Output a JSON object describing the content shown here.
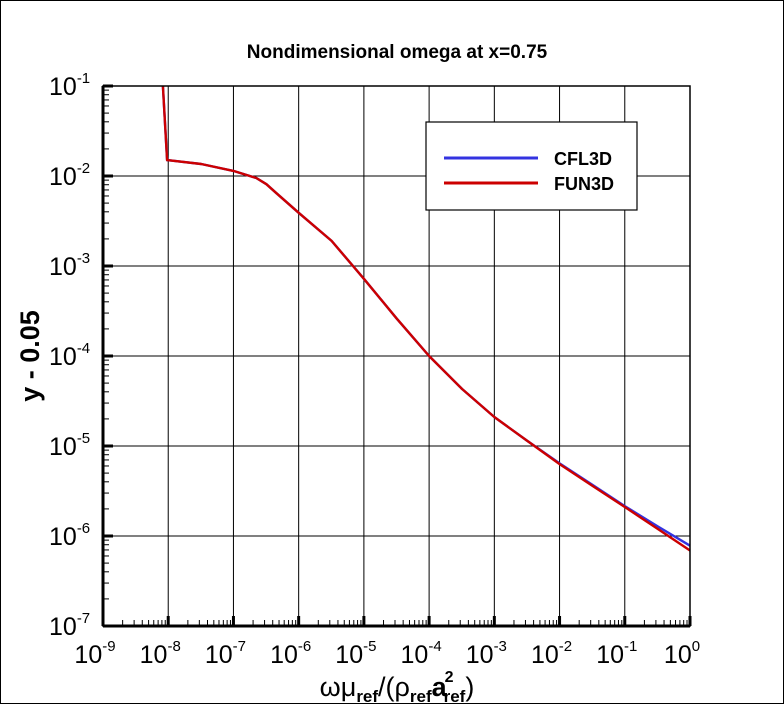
{
  "chart_data": {
    "type": "line",
    "title": "Nondimensional omega at x=0.75",
    "xlabel": "ωμref/(ρref a²ref)",
    "xlabel_parts": {
      "omega_mu": "ωμ",
      "sub1": "ref",
      "slash_paren": "/(ρ",
      "sub2": "ref",
      "a": "a",
      "sup": "2",
      "sub3": "ref",
      "close": ")"
    },
    "ylabel": "y - 0.05",
    "xscale": "log",
    "yscale": "log",
    "xlim": [
      1e-09,
      1
    ],
    "ylim": [
      1e-07,
      0.1
    ],
    "grid": true,
    "legend_position": "upper right (inset)",
    "x_ticks": [
      {
        "base": "10",
        "exp": "-9"
      },
      {
        "base": "10",
        "exp": "-8"
      },
      {
        "base": "10",
        "exp": "-7"
      },
      {
        "base": "10",
        "exp": "-6"
      },
      {
        "base": "10",
        "exp": "-5"
      },
      {
        "base": "10",
        "exp": "-4"
      },
      {
        "base": "10",
        "exp": "-3"
      },
      {
        "base": "10",
        "exp": "-2"
      },
      {
        "base": "10",
        "exp": "-1"
      },
      {
        "base": "10",
        "exp": "0"
      }
    ],
    "y_ticks": [
      {
        "base": "10",
        "exp": "-1"
      },
      {
        "base": "10",
        "exp": "-2"
      },
      {
        "base": "10",
        "exp": "-3"
      },
      {
        "base": "10",
        "exp": "-4"
      },
      {
        "base": "10",
        "exp": "-5"
      },
      {
        "base": "10",
        "exp": "-6"
      },
      {
        "base": "10",
        "exp": "-7"
      }
    ],
    "series": [
      {
        "name": "CFL3D",
        "color": "#3333e0",
        "x": [
          8.3e-09,
          9.6e-09,
          1e-08,
          3.2e-08,
          1e-07,
          2.24e-07,
          3.2e-07,
          4.5e-07,
          1e-06,
          3.2e-06,
          6.8e-06,
          1e-05,
          3.2e-05,
          0.0001,
          0.00032,
          0.001,
          0.0032,
          0.01,
          0.032,
          0.1,
          0.32,
          1.0
        ],
        "y": [
          0.1,
          0.015,
          0.015,
          0.0136,
          0.0114,
          0.0095,
          0.0081,
          0.0065,
          0.0039,
          0.0019,
          0.001,
          0.00072,
          0.00026,
          0.0001,
          4.3e-05,
          2.1e-05,
          1.14e-05,
          6.4e-06,
          3.7e-06,
          2.15e-06,
          1.28e-06,
          7.8e-07
        ]
      },
      {
        "name": "FUN3D",
        "color": "#cc0000",
        "x": [
          8.3e-09,
          9.6e-09,
          1e-08,
          3.2e-08,
          1e-07,
          2.24e-07,
          3.2e-07,
          4.5e-07,
          1e-06,
          3.2e-06,
          6.8e-06,
          1e-05,
          3.2e-05,
          0.0001,
          0.00032,
          0.001,
          0.0032,
          0.01,
          0.032,
          0.1,
          0.32,
          1.0
        ],
        "y": [
          0.1,
          0.015,
          0.015,
          0.0136,
          0.0114,
          0.0095,
          0.0081,
          0.0065,
          0.0039,
          0.0019,
          0.001,
          0.00072,
          0.00026,
          0.0001,
          4.3e-05,
          2.1e-05,
          1.14e-05,
          6.3e-06,
          3.6e-06,
          2.1e-06,
          1.2e-06,
          6.9e-07
        ]
      }
    ]
  },
  "legend": {
    "items": [
      {
        "label": "CFL3D",
        "color": "#3333e0"
      },
      {
        "label": "FUN3D",
        "color": "#cc0000"
      }
    ]
  }
}
